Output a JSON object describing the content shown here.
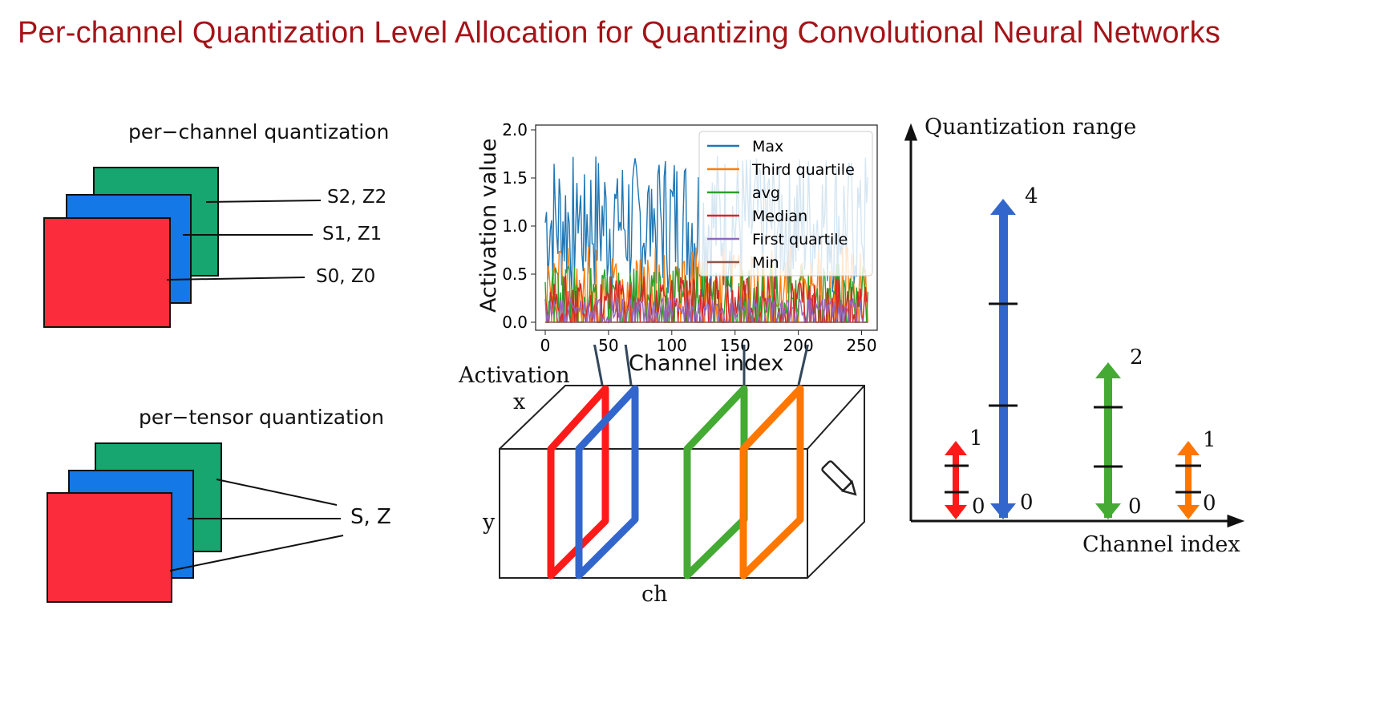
{
  "slide": {
    "title": "Per-channel Quantization Level Allocation for Quantizing Convolutional Neural Networks"
  },
  "left_diagram": {
    "per_channel_label": "per−channel quantization",
    "per_channel_params": [
      "S2, Z2",
      "S1, Z1",
      "S0, Z0"
    ],
    "per_tensor_label": "per−tensor quantization",
    "per_tensor_param": "S, Z",
    "colors": {
      "red": "#fb2d3c",
      "blue": "#1478e6",
      "green": "#17a570"
    }
  },
  "chart_data": {
    "type": "line",
    "title": "",
    "xlabel": "Channel index",
    "ylabel": "Activation value",
    "xlim": [
      0,
      256
    ],
    "ylim": [
      0,
      2.0
    ],
    "xticks": [
      0,
      50,
      100,
      150,
      200,
      250
    ],
    "yticks": [
      0.0,
      0.5,
      1.0,
      1.5,
      2.0
    ],
    "legend_position": "top-right",
    "num_channels": 256,
    "series": [
      {
        "name": "Max",
        "color": "#1f77b4",
        "approx_mean": 1.05,
        "approx_max": 1.73
      },
      {
        "name": "Third quartile",
        "color": "#ff7f0e",
        "approx_mean": 0.45,
        "approx_max": 0.95
      },
      {
        "name": "avg",
        "color": "#2ca02c",
        "approx_mean": 0.35,
        "approx_max": 0.8
      },
      {
        "name": "Median",
        "color": "#d62728",
        "approx_mean": 0.28,
        "approx_max": 0.7
      },
      {
        "name": "First quartile",
        "color": "#9467bd",
        "approx_mean": 0.15,
        "approx_max": 0.5
      },
      {
        "name": "Min",
        "color": "#8c564b",
        "approx_mean": 0.0,
        "approx_max": 0.0
      }
    ]
  },
  "activation_cube": {
    "label": "Activation",
    "axis_x": "x",
    "axis_y": "y",
    "axis_ch": "ch",
    "slice_colors": [
      "#ff1a1a",
      "#3366cc",
      "#44aa33",
      "#ff7700"
    ]
  },
  "range_chart": {
    "ylabel": "Quantization range",
    "xlabel": "Channel index",
    "arrows": [
      {
        "color": "#ff1a1a",
        "top_label": "1",
        "bottom_label": "0",
        "levels": 2
      },
      {
        "color": "#3366cc",
        "top_label": "4",
        "bottom_label": "0",
        "levels": 2
      },
      {
        "color": "#44aa33",
        "top_label": "2",
        "bottom_label": "0",
        "levels": 2
      },
      {
        "color": "#ff7700",
        "top_label": "1",
        "bottom_label": "0",
        "levels": 2
      }
    ]
  }
}
